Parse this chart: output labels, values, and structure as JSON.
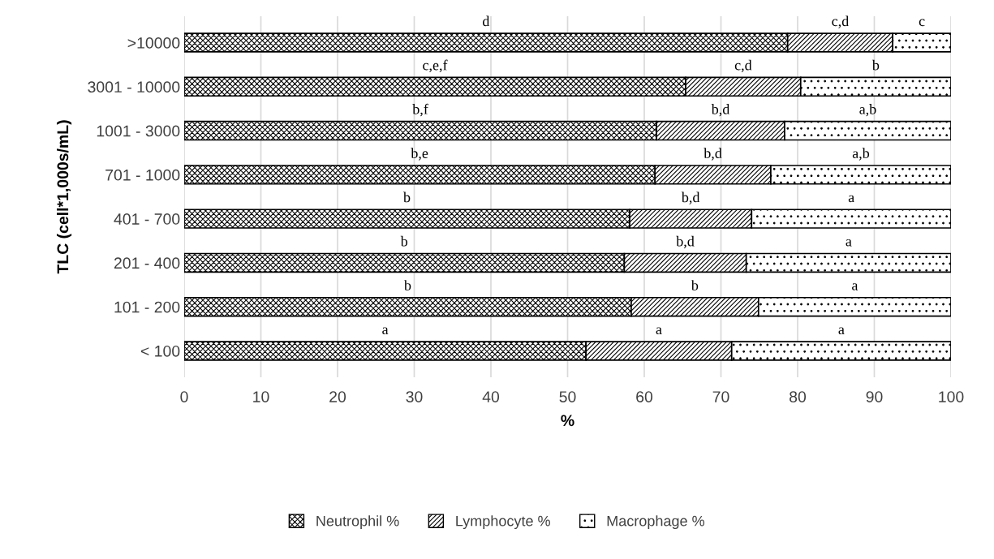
{
  "chart_data": {
    "type": "bar",
    "orientation": "horizontal",
    "stacked": true,
    "xlabel": "%",
    "ylabel": "TLC (cell*1,000s/mL)",
    "categories": [
      ">10000",
      "3001 - 10000",
      "1001 - 3000",
      "701 - 1000",
      "401 - 700",
      "201 - 400",
      "101 - 200",
      "< 100"
    ],
    "series": [
      {
        "name": "Neutrophil %",
        "color": "#000000",
        "values": [
          78.7,
          65.4,
          61.6,
          61.4,
          58.1,
          57.4,
          58.3,
          52.4
        ]
      },
      {
        "name": "Lymphocyte %",
        "color": "#000000",
        "values": [
          13.7,
          15.0,
          16.7,
          15.1,
          15.9,
          15.9,
          16.6,
          19.0
        ]
      },
      {
        "name": "Macrophage %",
        "color": "#000000",
        "values": [
          7.6,
          19.6,
          21.7,
          23.5,
          26.0,
          26.7,
          25.1,
          28.6
        ]
      }
    ],
    "xlim": [
      0,
      100
    ],
    "xticks": [
      0,
      10,
      20,
      30,
      40,
      50,
      60,
      70,
      80,
      90,
      100
    ],
    "grid": "x",
    "legend": "bottom",
    "annotations": [
      "d",
      "c,d",
      "c",
      "c,e,f",
      "c,d",
      "b",
      "b,f",
      "b,d",
      "a,b",
      "b,e",
      "b,d",
      "a,b",
      "b",
      "b,d",
      "a",
      "b",
      "b,d",
      "a",
      "b",
      "b",
      "a",
      "a",
      "a",
      "a"
    ]
  }
}
